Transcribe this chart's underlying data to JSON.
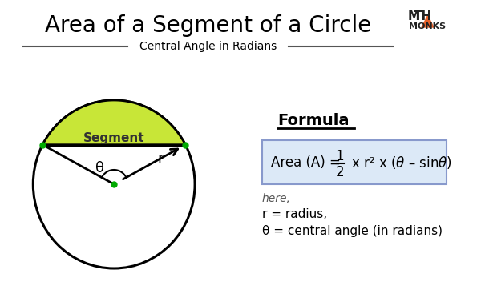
{
  "title": "Area of a Segment of a Circle",
  "subtitle": "Central Angle in Radians",
  "background_color": "#ffffff",
  "title_color": "#000000",
  "subtitle_color": "#000000",
  "circle_color": "#000000",
  "segment_fill": "#c8e637",
  "segment_edge": "#000000",
  "chord_color": "#000000",
  "radius_line_color": "#000000",
  "dot_color": "#00aa00",
  "formula_box_bg": "#dce9f7",
  "formula_box_edge": "#aabbdd",
  "formula_label": "Formula",
  "here_text": "here,",
  "var1_text": "r = radius,",
  "var2_text": "θ = central angle (in radians)",
  "segment_label": "Segment",
  "theta_label": "θ",
  "r_label": "r",
  "logo_text1": "M▲TH",
  "logo_text2": "MONKS",
  "logo_triangle_color": "#e8622a",
  "logo_color": "#222222"
}
